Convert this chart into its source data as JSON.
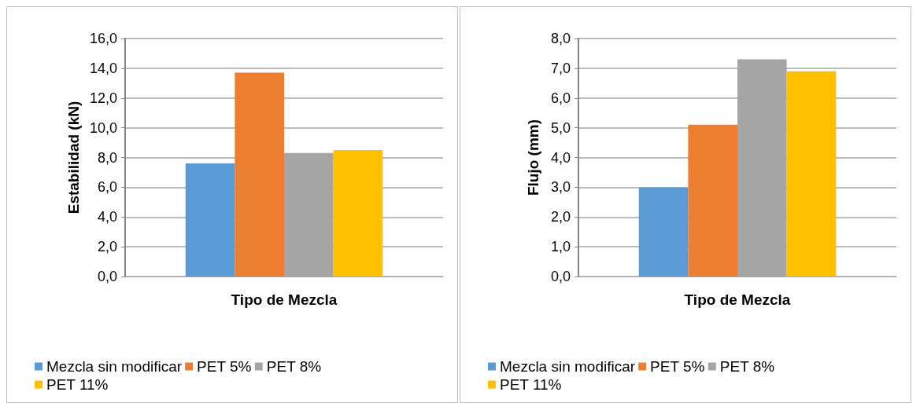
{
  "chart_data": [
    {
      "type": "bar",
      "xlabel": "Tipo de Mezcla",
      "ylabel": "Estabilidad (kN)",
      "categories": [
        null
      ],
      "ylim": [
        0,
        16
      ],
      "yticks": [
        {
          "value": 0,
          "label": "0,0"
        },
        {
          "value": 2,
          "label": "2,0"
        },
        {
          "value": 4,
          "label": "4,0"
        },
        {
          "value": 6,
          "label": "6,0"
        },
        {
          "value": 8,
          "label": "8,0"
        },
        {
          "value": 10,
          "label": "10,0"
        },
        {
          "value": 12,
          "label": "12,0"
        },
        {
          "value": 14,
          "label": "14,0"
        },
        {
          "value": 16,
          "label": "16,0"
        }
      ],
      "grid": "y",
      "legend": "bottom",
      "series": [
        {
          "name": "Mezcla sin modificar",
          "color": "#5b9bd5",
          "values": [
            7.6
          ]
        },
        {
          "name": "PET 5%",
          "color": "#ed7d31",
          "values": [
            13.7
          ]
        },
        {
          "name": "PET 8%",
          "color": "#a5a5a5",
          "values": [
            8.3
          ]
        },
        {
          "name": "PET 11%",
          "color": "#ffc000",
          "values": [
            8.5
          ]
        }
      ]
    },
    {
      "type": "bar",
      "xlabel": "Tipo de Mezcla",
      "ylabel": "Flujo (mm)",
      "categories": [
        null
      ],
      "ylim": [
        0,
        8
      ],
      "yticks": [
        {
          "value": 0,
          "label": "0,0"
        },
        {
          "value": 1,
          "label": "1,0"
        },
        {
          "value": 2,
          "label": "2,0"
        },
        {
          "value": 3,
          "label": "3,0"
        },
        {
          "value": 4,
          "label": "4,0"
        },
        {
          "value": 5,
          "label": "5,0"
        },
        {
          "value": 6,
          "label": "6,0"
        },
        {
          "value": 7,
          "label": "7,0"
        },
        {
          "value": 8,
          "label": "8,0"
        }
      ],
      "grid": "y",
      "legend": "bottom",
      "series": [
        {
          "name": "Mezcla sin modificar",
          "color": "#5b9bd5",
          "values": [
            3.0
          ]
        },
        {
          "name": "PET 5%",
          "color": "#ed7d31",
          "values": [
            5.1
          ]
        },
        {
          "name": "PET 8%",
          "color": "#a5a5a5",
          "values": [
            7.3
          ]
        },
        {
          "name": "PET 11%",
          "color": "#ffc000",
          "values": [
            6.9
          ]
        }
      ]
    }
  ]
}
